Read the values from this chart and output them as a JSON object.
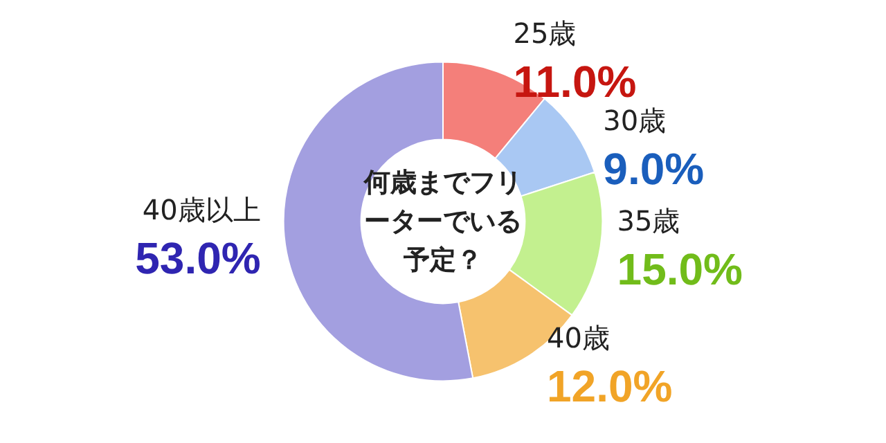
{
  "chart_data": {
    "type": "donut",
    "title": "何歳までフリーターでいる予定？",
    "categories": [
      "25歳",
      "30歳",
      "35歳",
      "40歳",
      "40歳以上"
    ],
    "values": [
      11,
      9,
      15,
      12,
      53
    ],
    "value_labels": [
      "11.0%",
      "9.0%",
      "15.0%",
      "12.0%",
      "53.0%"
    ],
    "colors": [
      "#f47f7a",
      "#a9c8f3",
      "#c3f08f",
      "#f6c26e",
      "#a39fe0"
    ],
    "legend": false
  }
}
